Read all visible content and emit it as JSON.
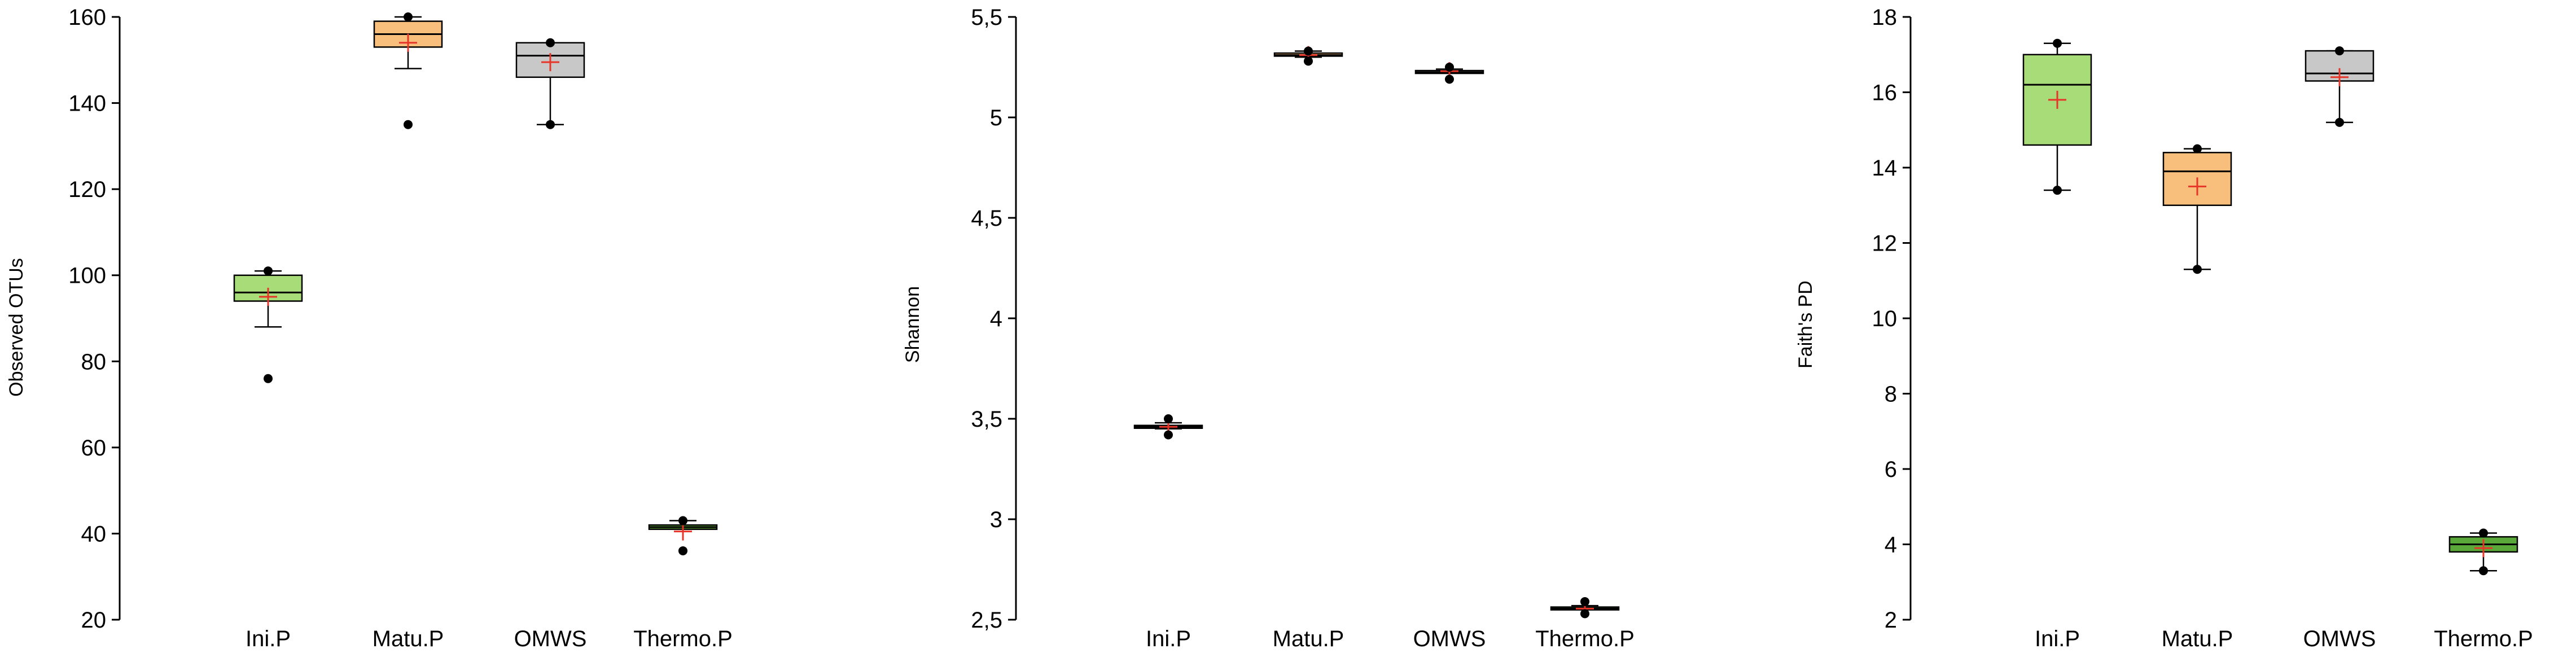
{
  "chart_data": [
    {
      "type": "box",
      "ylabel": "Observed OTUs",
      "ylim": [
        20,
        160
      ],
      "yticks": [
        "20",
        "40",
        "60",
        "80",
        "100",
        "120",
        "140",
        "160"
      ],
      "ytick_values": [
        20,
        40,
        60,
        80,
        100,
        120,
        140,
        160
      ],
      "categories": [
        "Ini.P",
        "Matu.P",
        "OMWS",
        "Thermo.P"
      ],
      "boxes": [
        {
          "whisker_low": 88,
          "q1": 94,
          "median": 96,
          "q3": 100,
          "whisker_high": 101,
          "mean": 95,
          "points": [
            76,
            101
          ],
          "color": "#a8dc78"
        },
        {
          "whisker_low": 148,
          "q1": 153,
          "median": 156,
          "q3": 159,
          "whisker_high": 160,
          "mean": 154,
          "points": [
            135,
            160
          ],
          "color": "#f8be7c"
        },
        {
          "whisker_low": 135,
          "q1": 146,
          "median": 151,
          "q3": 154,
          "whisker_high": 154,
          "mean": 149.5,
          "points": [
            135,
            154
          ],
          "color": "#c8c8c8"
        },
        {
          "whisker_low": 41,
          "q1": 41,
          "median": 41.5,
          "q3": 42,
          "whisker_high": 43,
          "mean": 40.5,
          "points": [
            36,
            43
          ],
          "color": "#5aa83a"
        }
      ]
    },
    {
      "type": "box",
      "ylabel": "Shannon",
      "ylim": [
        2.5,
        5.5
      ],
      "yticks": [
        "2,5",
        "3",
        "3,5",
        "4",
        "4,5",
        "5",
        "5,5"
      ],
      "ytick_values": [
        2.5,
        3,
        3.5,
        4,
        4.5,
        5,
        5.5
      ],
      "categories": [
        "Ini.P",
        "Matu.P",
        "OMWS",
        "Thermo.P"
      ],
      "boxes": [
        {
          "whisker_low": 3.45,
          "q1": 3.455,
          "median": 3.46,
          "q3": 3.465,
          "whisker_high": 3.48,
          "mean": 3.46,
          "points": [
            3.42,
            3.5
          ],
          "color": "#a8dc78"
        },
        {
          "whisker_low": 5.3,
          "q1": 5.305,
          "median": 5.31,
          "q3": 5.32,
          "whisker_high": 5.33,
          "mean": 5.31,
          "points": [
            5.28,
            5.33
          ],
          "color": "#f8be7c"
        },
        {
          "whisker_low": 5.22,
          "q1": 5.222,
          "median": 5.225,
          "q3": 5.23,
          "whisker_high": 5.24,
          "mean": 5.23,
          "points": [
            5.19,
            5.25
          ],
          "color": "#c8c8c8"
        },
        {
          "whisker_low": 2.55,
          "q1": 2.552,
          "median": 2.555,
          "q3": 2.56,
          "whisker_high": 2.57,
          "mean": 2.555,
          "points": [
            2.53,
            2.59
          ],
          "color": "#5aa83a"
        }
      ]
    },
    {
      "type": "box",
      "ylabel": "Faith's PD",
      "ylim": [
        2,
        18
      ],
      "yticks": [
        "2",
        "4",
        "6",
        "8",
        "10",
        "12",
        "14",
        "16",
        "18"
      ],
      "ytick_values": [
        2,
        4,
        6,
        8,
        10,
        12,
        14,
        16,
        18
      ],
      "categories": [
        "Ini.P",
        "Matu.P",
        "OMWS",
        "Thermo.P"
      ],
      "boxes": [
        {
          "whisker_low": 13.4,
          "q1": 14.6,
          "median": 16.2,
          "q3": 17.0,
          "whisker_high": 17.3,
          "mean": 15.8,
          "points": [
            13.4,
            17.3
          ],
          "color": "#a8dc78"
        },
        {
          "whisker_low": 11.3,
          "q1": 13.0,
          "median": 13.9,
          "q3": 14.4,
          "whisker_high": 14.5,
          "mean": 13.5,
          "points": [
            11.3,
            14.5
          ],
          "color": "#f8be7c"
        },
        {
          "whisker_low": 15.2,
          "q1": 16.3,
          "median": 16.5,
          "q3": 17.1,
          "whisker_high": 17.1,
          "mean": 16.4,
          "points": [
            15.2,
            17.1
          ],
          "color": "#c8c8c8"
        },
        {
          "whisker_low": 3.3,
          "q1": 3.8,
          "median": 4.0,
          "q3": 4.2,
          "whisker_high": 4.3,
          "mean": 3.9,
          "points": [
            3.3,
            4.3
          ],
          "color": "#5aa83a"
        }
      ]
    }
  ]
}
